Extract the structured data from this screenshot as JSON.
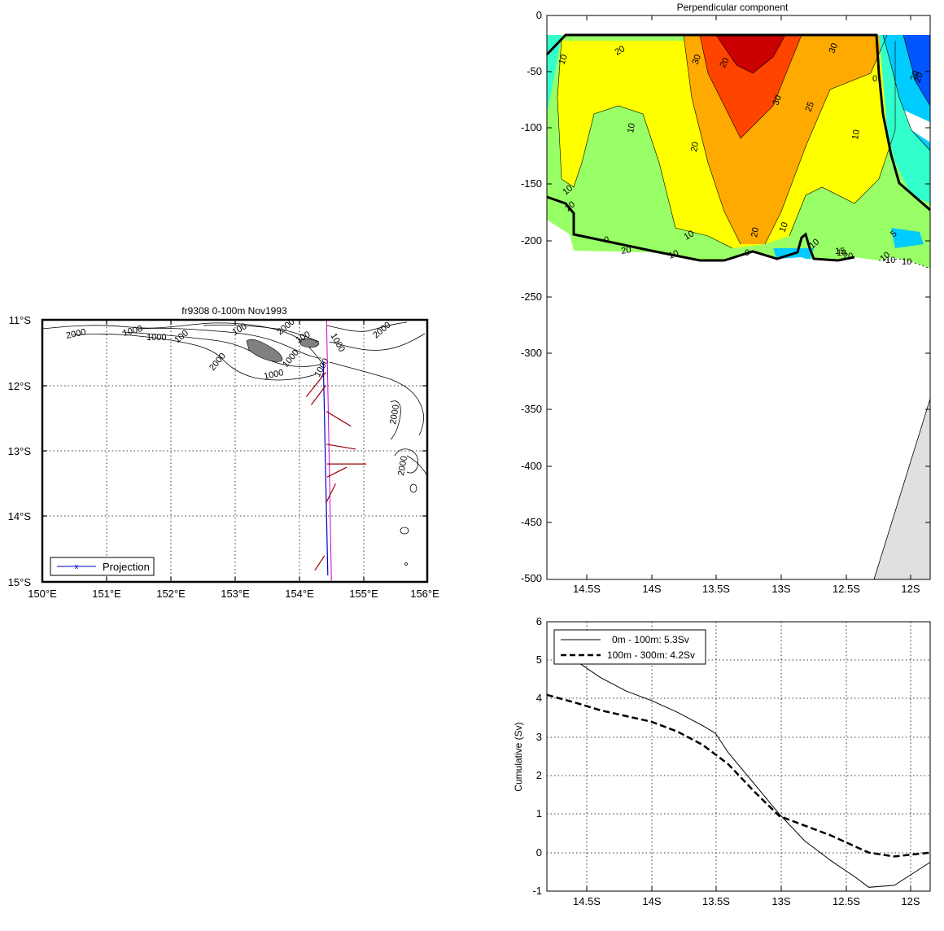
{
  "figure": {
    "map": {
      "title": "fr9308 0-100m Nov1993",
      "x_ticks": [
        "150°E",
        "151°E",
        "152°E",
        "153°E",
        "154°E",
        "155°E",
        "156°E"
      ],
      "y_ticks": [
        "11°S",
        "12°S",
        "13°S",
        "14°S",
        "15°S"
      ],
      "legend": "Projection",
      "contour_labels": [
        "2000",
        "1000",
        "1000",
        "100",
        "100",
        "2000",
        "1000",
        "1000",
        "2000",
        "100",
        "1000",
        "1000",
        "2000",
        "2000",
        "2000"
      ]
    },
    "section": {
      "title": "Perpendicular component",
      "y_ticks": [
        "0",
        "-50",
        "-100",
        "-150",
        "-200",
        "-250",
        "-300",
        "-350",
        "-400",
        "-450",
        "-500"
      ],
      "x_ticks": [
        "14.5S",
        "14S",
        "13.5S",
        "13S",
        "12.5S",
        "12S"
      ],
      "contour_labels": [
        "10",
        "20",
        "30",
        "20",
        "30",
        "25",
        "30",
        "20",
        "20",
        "10",
        "10",
        "10",
        "10",
        "20",
        "20",
        "10",
        "10",
        "20",
        "0",
        "0",
        "10",
        "10",
        "15",
        "20",
        "10",
        "10",
        "0",
        "10",
        "5",
        "20"
      ]
    },
    "cumulative": {
      "ylabel": "Cumulative (Sv)",
      "y_ticks": [
        "6",
        "5",
        "4",
        "3",
        "2",
        "1",
        "0",
        "-1"
      ],
      "x_ticks": [
        "14.5S",
        "14S",
        "13.5S",
        "13S",
        "12.5S",
        "12S"
      ],
      "legend": [
        "0m - 100m:  5.3Sv",
        "100m - 300m:  4.2Sv"
      ]
    }
  },
  "chart_data": [
    {
      "type": "map",
      "title": "fr9308 0-100m Nov1993",
      "xlim": [
        150,
        156
      ],
      "ylim": [
        -15,
        -11
      ],
      "legend": [
        "Projection"
      ],
      "projection_line": {
        "lon": [
          154.38,
          154.45
        ],
        "lat": [
          -11.65,
          -14.9
        ]
      },
      "velocity_vectors": [
        {
          "lon": 154.42,
          "lat": -11.8,
          "du": -0.4,
          "dv": -0.5
        },
        {
          "lon": 154.42,
          "lat": -12.0,
          "du": -0.3,
          "dv": -0.4
        },
        {
          "lon": 154.43,
          "lat": -12.4,
          "du": 0.5,
          "dv": -0.3
        },
        {
          "lon": 154.43,
          "lat": -12.9,
          "du": 0.6,
          "dv": -0.1
        },
        {
          "lon": 154.44,
          "lat": -13.2,
          "du": 0.8,
          "dv": 0.0
        },
        {
          "lon": 154.44,
          "lat": -13.4,
          "du": 0.4,
          "dv": 0.2
        },
        {
          "lon": 154.42,
          "lat": -13.8,
          "du": 0.2,
          "dv": 0.4
        },
        {
          "lon": 154.4,
          "lat": -14.6,
          "du": -0.2,
          "dv": -0.3
        }
      ]
    },
    {
      "type": "contour",
      "title": "Perpendicular component",
      "xlabel": "",
      "ylabel": "",
      "x_ticks": [
        "14.5S",
        "14S",
        "13.5S",
        "13S",
        "12.5S",
        "12S"
      ],
      "xlim": [
        -14.82,
        -11.82
      ],
      "ylim": [
        -500,
        0
      ],
      "levels": [
        -30,
        -20,
        -10,
        -5,
        0,
        10,
        15,
        20,
        25,
        30,
        40
      ],
      "level_colors": {
        "-20": "#0055ff",
        "-10": "#00ccff",
        "0": "#33ffcc",
        "5": "#99ff66",
        "10": "#ffff00",
        "20": "#ffaa00",
        "30": "#ff4400",
        "40": "#cc0000"
      },
      "data_bottom_m": -215,
      "bathymetry_shaded": true
    },
    {
      "type": "line",
      "xlabel": "",
      "ylabel": "Cumulative (Sv)",
      "x_ticks": [
        "14.5S",
        "14S",
        "13.5S",
        "13S",
        "12.5S",
        "12S"
      ],
      "xlim": [
        -14.82,
        -11.82
      ],
      "ylim": [
        -1,
        6
      ],
      "grid": true,
      "legend_placement": "top-left",
      "series": [
        {
          "name": "0m - 100m:  5.3Sv",
          "style": "solid",
          "x": [
            -14.6,
            -14.4,
            -14.2,
            -14.0,
            -13.8,
            -13.6,
            -13.5,
            -13.4,
            -13.2,
            -13.0,
            -12.8,
            -12.6,
            -12.4,
            -12.3,
            -12.1,
            -11.82
          ],
          "y": [
            5.0,
            4.55,
            4.2,
            3.95,
            3.65,
            3.3,
            3.1,
            2.6,
            1.8,
            1.0,
            0.3,
            -0.2,
            -0.65,
            -0.9,
            -0.85,
            -0.25
          ]
        },
        {
          "name": "100m - 300m:  4.2Sv",
          "style": "dashed",
          "x": [
            -14.82,
            -14.6,
            -14.4,
            -14.2,
            -14.0,
            -13.8,
            -13.6,
            -13.4,
            -13.2,
            -13.0,
            -12.8,
            -12.6,
            -12.4,
            -12.3,
            -12.1,
            -11.82
          ],
          "y": [
            4.1,
            3.9,
            3.7,
            3.55,
            3.4,
            3.15,
            2.8,
            2.3,
            1.6,
            0.95,
            0.7,
            0.45,
            0.15,
            0.0,
            -0.1,
            0.0
          ]
        }
      ]
    }
  ]
}
